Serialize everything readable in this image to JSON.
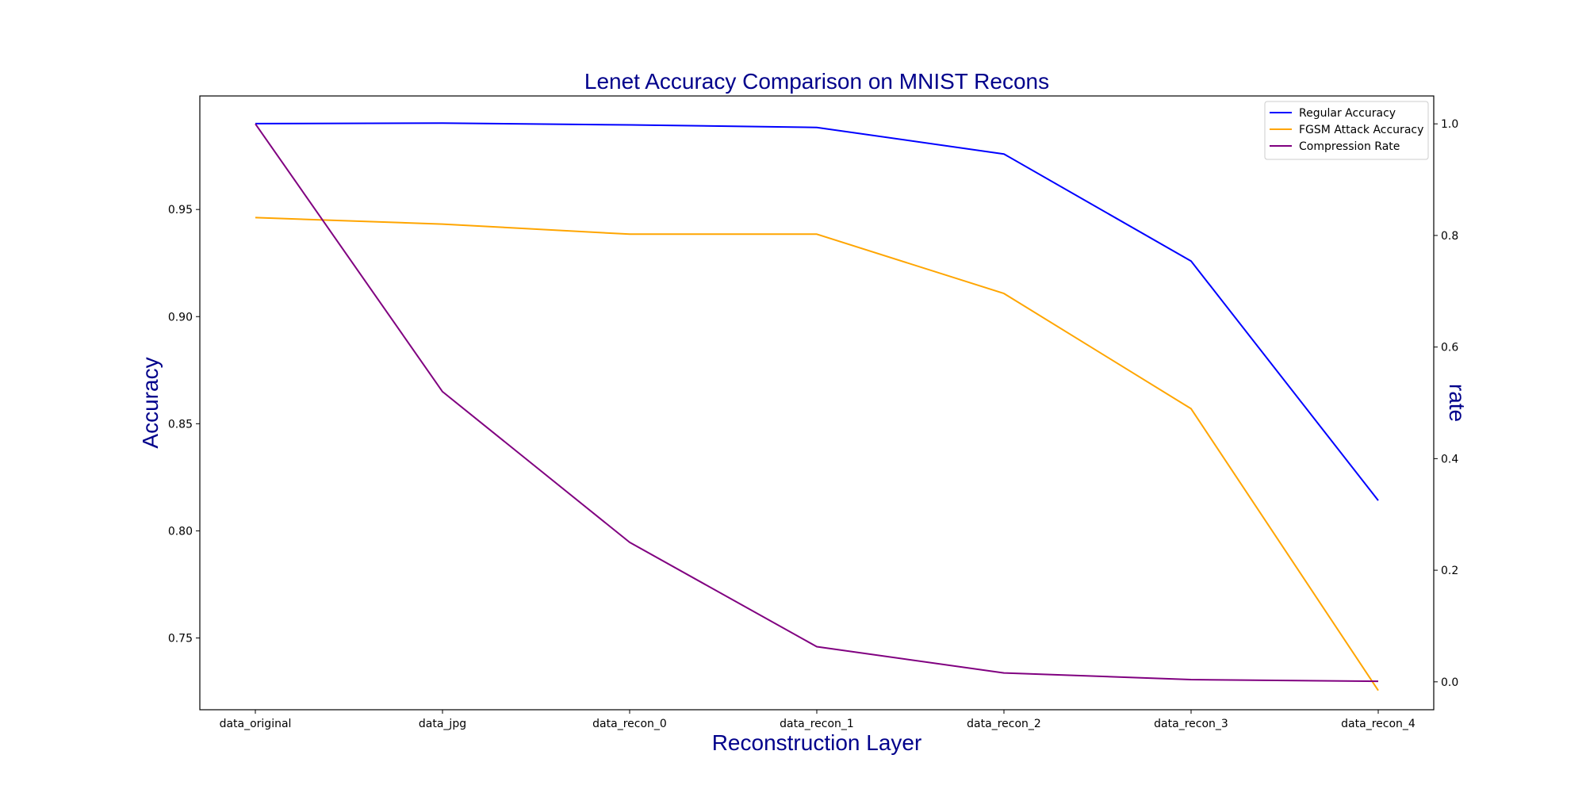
{
  "chart_data": {
    "type": "line",
    "title": "Lenet Accuracy Comparison on MNIST Recons",
    "xlabel": "Reconstruction Layer",
    "ylabel": "Accuracy",
    "ylabel_right": "rate",
    "categories": [
      "data_original",
      "data_jpg",
      "data_recon_0",
      "data_recon_1",
      "data_recon_2",
      "data_recon_3",
      "data_recon_4"
    ],
    "y_left": {
      "range": [
        0.7165,
        1.003
      ],
      "ticks": [
        0.75,
        0.8,
        0.85,
        0.9,
        0.95
      ],
      "tick_labels": [
        "0.75",
        "0.80",
        "0.85",
        "0.90",
        "0.95"
      ]
    },
    "y_right": {
      "range": [
        -0.05,
        1.05
      ],
      "ticks": [
        0.0,
        0.2,
        0.4,
        0.6,
        0.8,
        1.0
      ],
      "tick_labels": [
        "0.0",
        "0.2",
        "0.4",
        "0.6",
        "0.8",
        "1.0"
      ]
    },
    "series": [
      {
        "name": "Regular Accuracy",
        "axis": "left",
        "color": "#0000ff",
        "values": [
          0.9901,
          0.9903,
          0.9895,
          0.9883,
          0.9759,
          0.9259,
          0.8142
        ]
      },
      {
        "name": "FGSM Attack Accuracy",
        "axis": "left",
        "color": "#ffa500",
        "values": [
          0.9462,
          0.9432,
          0.9385,
          0.9385,
          0.9108,
          0.857,
          0.7255
        ]
      },
      {
        "name": "Compression Rate",
        "axis": "right",
        "color": "#800080",
        "values": [
          1.0,
          0.52,
          0.25,
          0.063,
          0.016,
          0.004,
          0.001
        ]
      }
    ],
    "legend": {
      "placement": "top-right"
    },
    "grid": false
  }
}
